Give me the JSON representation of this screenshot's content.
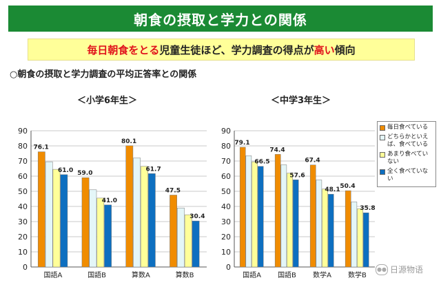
{
  "header": {
    "title": "朝食の摂取と学力との関係",
    "subtitle_part1": "毎日朝食をとる",
    "subtitle_part2": "児童生徒ほど、学力調査の得点が",
    "subtitle_part3": "高い",
    "subtitle_part4": "傾向"
  },
  "section_title": "○朝食の摂取と学力調査の平均正答率との関係",
  "legend": {
    "items": [
      {
        "label": "毎日食べている",
        "color": "#f08c00"
      },
      {
        "label": "どちらかといえば、食べている",
        "color": "#e4f6f8"
      },
      {
        "label": "あまり食べていない",
        "color": "#ffff99"
      },
      {
        "label": "全く食べていない",
        "color": "#0d6fc0"
      }
    ]
  },
  "watermark": {
    "text": "日源物语",
    "icon": "wechat-icon"
  },
  "chart_data": [
    {
      "type": "bar",
      "title": "＜小学6年生＞",
      "categories": [
        "国語A",
        "国語B",
        "算数A",
        "算数B"
      ],
      "series": [
        {
          "name": "毎日食べている",
          "values": [
            76.1,
            59.0,
            80.1,
            47.5
          ]
        },
        {
          "name": "どちらかといえば、食べている",
          "values": [
            69.5,
            51.0,
            72.0,
            39.0
          ]
        },
        {
          "name": "あまり食べていない",
          "values": [
            64.5,
            45.5,
            66.5,
            34.5
          ]
        },
        {
          "name": "全く食べていない",
          "values": [
            61.0,
            41.0,
            61.7,
            30.4
          ]
        }
      ],
      "data_labels": [
        [
          "76.1",
          "",
          "",
          "61.0"
        ],
        [
          "59.0",
          "",
          "",
          "41.0"
        ],
        [
          "80.1",
          "",
          "",
          "61.7"
        ],
        [
          "47.5",
          "",
          "",
          "30.4"
        ]
      ],
      "ylim": [
        0,
        90
      ],
      "yticks": [
        0,
        10,
        20,
        30,
        40,
        50,
        60,
        70,
        80,
        90
      ],
      "grid": true,
      "xlabel": "",
      "ylabel": ""
    },
    {
      "type": "bar",
      "title": "＜中学3年生＞",
      "categories": [
        "国語A",
        "国語B",
        "数学A",
        "数学B"
      ],
      "series": [
        {
          "name": "毎日食べている",
          "values": [
            79.1,
            74.4,
            67.4,
            50.4
          ]
        },
        {
          "name": "どちらかといえば、食べている",
          "values": [
            73.5,
            67.5,
            57.5,
            43.0
          ]
        },
        {
          "name": "あまり食べていない",
          "values": [
            69.5,
            62.0,
            51.5,
            38.5
          ]
        },
        {
          "name": "全く食べていない",
          "values": [
            66.5,
            57.6,
            48.1,
            35.8
          ]
        }
      ],
      "data_labels": [
        [
          "79.1",
          "",
          "",
          "66.5"
        ],
        [
          "74.4",
          "",
          "",
          "57.6"
        ],
        [
          "67.4",
          "",
          "",
          "48.1"
        ],
        [
          "50.4",
          "",
          "",
          "35.8"
        ]
      ],
      "ylim": [
        0,
        90
      ],
      "yticks": [
        0,
        10,
        20,
        30,
        40,
        50,
        60,
        70,
        80,
        90
      ],
      "grid": true,
      "xlabel": "",
      "ylabel": ""
    }
  ]
}
